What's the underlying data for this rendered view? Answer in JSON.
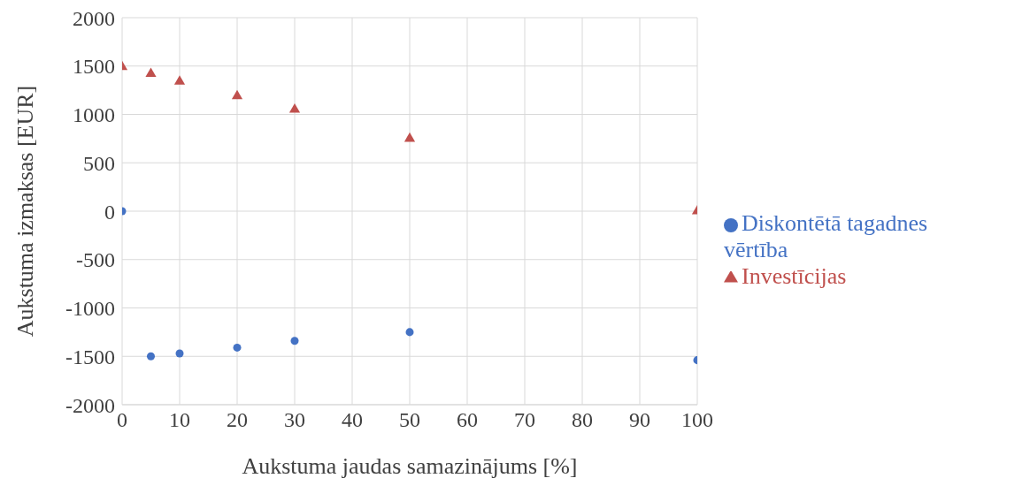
{
  "chart_data": {
    "type": "scatter",
    "xlabel": "Aukstuma jaudas samazinājums [%]",
    "ylabel": "Aukstuma izmaksas [EUR]",
    "x": [
      0,
      5,
      10,
      20,
      30,
      50,
      100
    ],
    "series": [
      {
        "name": "Diskontētā tagadnes vērtība",
        "color": "#4472c4",
        "marker": "circle",
        "values": [
          0,
          -1500,
          -1470,
          -1410,
          -1340,
          -1250,
          -1540
        ]
      },
      {
        "name": "Investīcijas",
        "color": "#c0504d",
        "marker": "triangle",
        "values": [
          1490,
          1420,
          1340,
          1190,
          1050,
          750,
          0
        ]
      }
    ],
    "xlim": [
      0,
      100
    ],
    "xticks": [
      0,
      10,
      20,
      30,
      40,
      50,
      60,
      70,
      80,
      90,
      100
    ],
    "ylim": [
      -2000,
      2000
    ],
    "yticks": [
      -2000,
      -1500,
      -1000,
      -500,
      0,
      500,
      1000,
      1500,
      2000
    ],
    "grid": true,
    "legend": "right"
  }
}
